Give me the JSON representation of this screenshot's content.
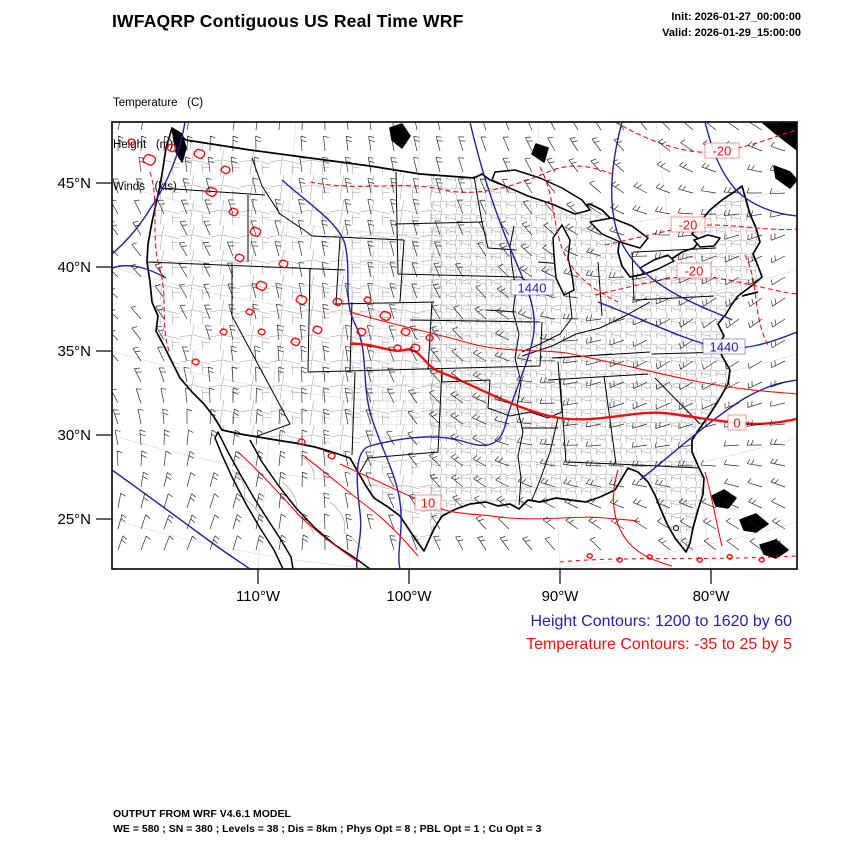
{
  "header": {
    "title": "IWFAQRP Contiguous US Real Time WRF",
    "init": "Init: 2026-01-27_00:00:00",
    "valid": "Valid: 2026-01-29_15:00:00"
  },
  "fields": {
    "temperature": "Temperature   (C)",
    "height": "Height   (m)",
    "winds": "Winds   (kts)"
  },
  "axes": {
    "y_ticks": [
      "45°N",
      "40°N",
      "35°N",
      "30°N",
      "25°N"
    ],
    "x_ticks": [
      "110°W",
      "100°W",
      "90°W",
      "80°W"
    ]
  },
  "map": {
    "contour_labels": [
      {
        "text": "-20",
        "field": "temperature"
      },
      {
        "text": "-20",
        "field": "temperature"
      },
      {
        "text": "-20",
        "field": "temperature"
      },
      {
        "text": "1440",
        "field": "height"
      },
      {
        "text": "1440",
        "field": "height"
      },
      {
        "text": "0",
        "field": "temperature"
      },
      {
        "text": "10",
        "field": "temperature"
      }
    ]
  },
  "legend": {
    "height_contours": "Height Contours: 1200 to 1620 by 60",
    "temperature_contours": "Temperature Contours: -35 to 25 by 5"
  },
  "footer": {
    "line1": "OUTPUT FROM WRF V4.6.1 MODEL",
    "line2": "WE = 580 ; SN = 380 ; Levels = 38 ; Dis = 8km ; Phys Opt = 8 ; PBL Opt = 1 ; Cu Opt = 3"
  },
  "colors": {
    "height_contour": "#2222a2",
    "temperature_contour": "#ee1111",
    "map_outline": "#000000",
    "county_lines": "#909090",
    "background": "#ffffff"
  },
  "chart_data": {
    "type": "map",
    "title": "IWFAQRP Contiguous US Real Time WRF",
    "region": "Contiguous US",
    "init_time": "2026-01-27_00:00:00",
    "valid_time": "2026-01-29_15:00:00",
    "fields": [
      "Temperature (C)",
      "Height (m)",
      "Winds (kts)"
    ],
    "height_contours": {
      "start": 1200,
      "end": 1620,
      "interval": 60,
      "units": "m"
    },
    "temperature_contours": {
      "start": -35,
      "end": 25,
      "interval": 5,
      "units": "C"
    },
    "lat_ticks_deg_n": [
      45,
      40,
      35,
      30,
      25
    ],
    "lon_ticks_deg_w": [
      110,
      100,
      90,
      80
    ],
    "labeled_contour_values": {
      "temperature_c": [
        -20,
        -20,
        -20,
        0,
        10
      ],
      "height_m": [
        1440,
        1440
      ]
    },
    "model_note": "OUTPUT FROM WRF V4.6.1 MODEL",
    "model_config": "WE = 580 ; SN = 380 ; Levels = 38 ; Dis = 8km ; Phys Opt = 8 ; PBL Opt = 1 ; Cu Opt = 3"
  }
}
